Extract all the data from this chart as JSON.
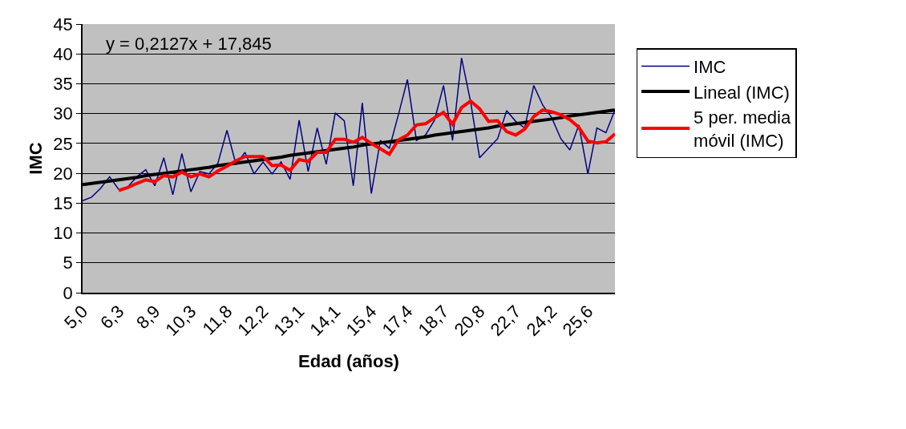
{
  "chart_data": {
    "type": "line",
    "xlabel": "Edad (años)",
    "ylabel": "IMC",
    "categories": [
      "5,0",
      null,
      null,
      null,
      "6,3",
      null,
      null,
      null,
      "8,9",
      null,
      null,
      null,
      "10,3",
      null,
      null,
      null,
      "11,8",
      null,
      null,
      null,
      "12,2",
      null,
      null,
      null,
      "13,1",
      null,
      null,
      null,
      "14,1",
      null,
      null,
      null,
      "15,4",
      null,
      null,
      null,
      "17,4",
      null,
      null,
      null,
      "18,7",
      null,
      null,
      null,
      "20,8",
      null,
      null,
      null,
      "22,7",
      null,
      null,
      null,
      "24,2",
      null,
      null,
      null,
      "25,6",
      null,
      null,
      null
    ],
    "series": [
      {
        "name": "IMC",
        "color": "#000080",
        "values": [
          15.4,
          16.0,
          17.5,
          19.4,
          17.3,
          17.7,
          19.4,
          20.6,
          17.9,
          22.6,
          16.4,
          23.3,
          16.9,
          20.3,
          19.9,
          21.7,
          27.2,
          21.5,
          23.5,
          19.9,
          21.9,
          19.9,
          21.9,
          19.0,
          28.9,
          20.3,
          27.6,
          21.5,
          30.1,
          28.8,
          17.9,
          31.8,
          16.6,
          25.5,
          24.2,
          29.8,
          35.7,
          25.5,
          26.4,
          28.9,
          34.7,
          25.5,
          39.3,
          32.0,
          22.6,
          24.2,
          25.8,
          30.5,
          28.7,
          27.6,
          34.7,
          31.4,
          29.3,
          25.8,
          23.9,
          28.1,
          19.9,
          27.6,
          26.8,
          30.6
        ]
      },
      {
        "name": "Lineal (IMC)",
        "color": "#000000",
        "values": [
          18.1,
          18.3,
          18.5,
          18.7,
          18.9,
          19.1,
          19.3,
          19.6,
          19.8,
          20.0,
          20.2,
          20.4,
          20.6,
          20.8,
          21.0,
          21.3,
          21.5,
          21.7,
          21.9,
          22.1,
          22.3,
          22.5,
          22.7,
          23.0,
          23.2,
          23.4,
          23.6,
          23.8,
          24.0,
          24.2,
          24.4,
          24.7,
          24.9,
          25.1,
          25.3,
          25.5,
          25.7,
          25.9,
          26.1,
          26.4,
          26.6,
          26.8,
          27.0,
          27.2,
          27.4,
          27.6,
          27.9,
          28.1,
          28.3,
          28.5,
          28.7,
          28.9,
          29.1,
          29.3,
          29.6,
          29.8,
          30.0,
          30.2,
          30.4,
          30.6
        ]
      },
      {
        "name": "5 per. media móvil (IMC)",
        "color": "#ff0000",
        "values": [
          null,
          null,
          null,
          null,
          17.1,
          17.6,
          18.3,
          18.9,
          18.6,
          19.6,
          19.4,
          20.2,
          19.4,
          19.9,
          19.4,
          20.4,
          21.2,
          22.1,
          22.8,
          22.8,
          22.8,
          21.3,
          21.4,
          20.5,
          22.3,
          22.0,
          23.5,
          23.5,
          25.7,
          25.7,
          25.2,
          26.0,
          25.0,
          24.1,
          23.2,
          25.6,
          26.4,
          28.1,
          28.3,
          29.3,
          30.2,
          28.2,
          31.0,
          32.1,
          30.8,
          28.7,
          28.8,
          27.0,
          26.4,
          27.4,
          29.5,
          30.6,
          30.3,
          29.8,
          29.0,
          27.7,
          25.4,
          25.1,
          25.3,
          26.6
        ]
      }
    ],
    "ylim": [
      0,
      45
    ],
    "yticks": [
      0,
      5,
      10,
      15,
      20,
      25,
      30,
      35,
      40,
      45
    ],
    "grid": "y",
    "legend": "right",
    "annotations": [
      "y = 0,2127x + 17,845"
    ]
  }
}
